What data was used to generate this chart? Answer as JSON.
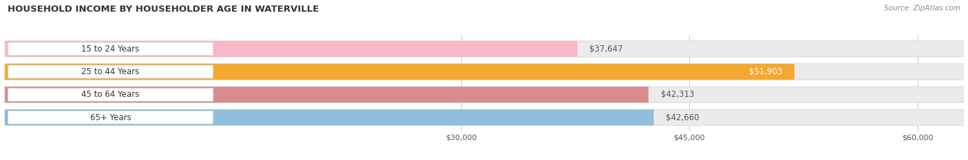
{
  "title": "HOUSEHOLD INCOME BY HOUSEHOLDER AGE IN WATERVILLE",
  "source": "Source: ZipAtlas.com",
  "categories": [
    "15 to 24 Years",
    "25 to 44 Years",
    "45 to 64 Years",
    "65+ Years"
  ],
  "values": [
    37647,
    51903,
    42313,
    42660
  ],
  "bar_colors": [
    "#f7b8c8",
    "#f5a830",
    "#d98e8e",
    "#90bedd"
  ],
  "bar_bg_color": "#ebebeb",
  "value_labels": [
    "$37,647",
    "$51,903",
    "$42,313",
    "$42,660"
  ],
  "value_label_inside": [
    false,
    true,
    false,
    false
  ],
  "xlim_min": 0,
  "xlim_max": 63000,
  "xticks": [
    30000,
    45000,
    60000
  ],
  "xtick_labels": [
    "$30,000",
    "$45,000",
    "$60,000"
  ],
  "figsize": [
    14.06,
    2.33
  ],
  "dpi": 100
}
